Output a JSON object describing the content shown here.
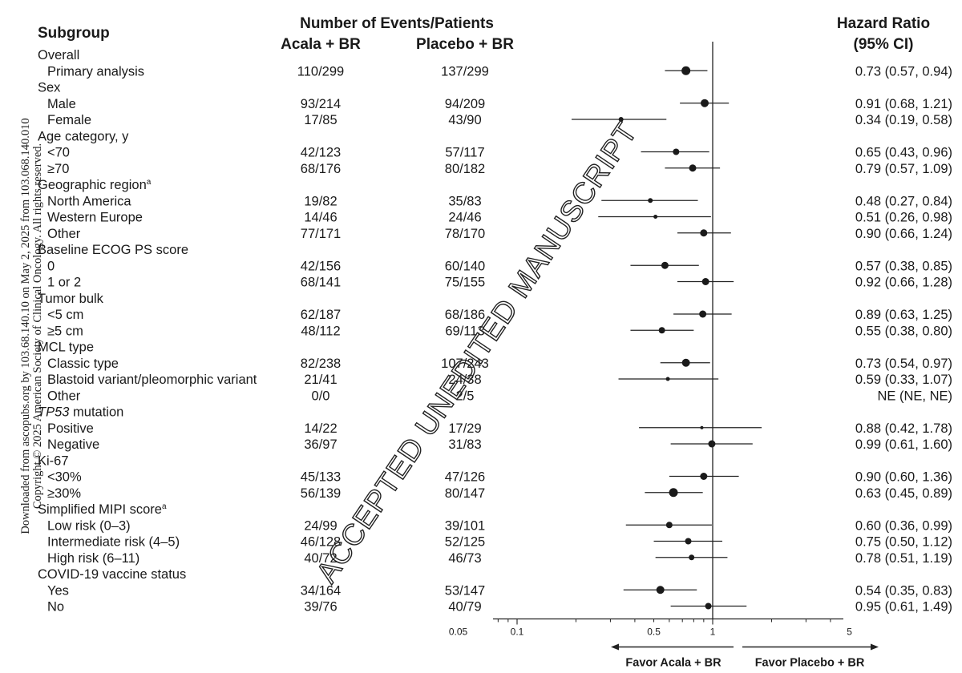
{
  "header": {
    "subgroup": "Subgroup",
    "events_title": "Number of Events/Patients",
    "arm1": "Acala + BR",
    "arm2": "Placebo + BR",
    "hr_title": "Hazard Ratio",
    "ci_title": "(95% CI)"
  },
  "side_credit": {
    "line1": "Downloaded from ascopubs.org by 103.68.140.10 on May 2, 2025 from 103.068.140.010",
    "line2": "Copyright © 2025 American Society of Clinical Oncology. All rights reserved."
  },
  "watermark": "ACCEPTED UNEDITED MANUSCRIPT",
  "chart_data": {
    "type": "forest",
    "x_scale": "log",
    "reference_line": 1,
    "xlim": [
      0.02,
      10
    ],
    "x_ticks": [
      0.05,
      0.1,
      0.5,
      1,
      5
    ],
    "x_tick_labels": [
      "0.05",
      "0.1",
      "0.5",
      "1",
      "5"
    ],
    "favor_left": "Favor Acala + BR",
    "favor_right": "Favor Placebo + BR",
    "rows": [
      {
        "label": "Overall",
        "header": true
      },
      {
        "label": "Primary analysis",
        "a": "110/299",
        "b": "137/299",
        "hr": 0.73,
        "lo": 0.57,
        "hi": 0.94,
        "ci_text": "0.73 (0.57, 0.94)",
        "w": 5.5
      },
      {
        "label": "Sex",
        "header": true
      },
      {
        "label": "Male",
        "a": "93/214",
        "b": "94/209",
        "hr": 0.91,
        "lo": 0.68,
        "hi": 1.21,
        "ci_text": "0.91 (0.68, 1.21)",
        "w": 5
      },
      {
        "label": "Female",
        "a": "17/85",
        "b": "43/90",
        "hr": 0.34,
        "lo": 0.19,
        "hi": 0.58,
        "ci_text": "0.34 (0.19, 0.58)",
        "w": 3
      },
      {
        "label": "Age category, y",
        "header": true
      },
      {
        "label": "<70",
        "a": "42/123",
        "b": "57/117",
        "hr": 0.65,
        "lo": 0.43,
        "hi": 0.96,
        "ci_text": "0.65 (0.43, 0.96)",
        "w": 4
      },
      {
        "label": "≥70",
        "a": "68/176",
        "b": "80/182",
        "hr": 0.79,
        "lo": 0.57,
        "hi": 1.09,
        "ci_text": "0.79 (0.57, 1.09)",
        "w": 4.5
      },
      {
        "label": "Geographic region",
        "sup": "a",
        "header": true
      },
      {
        "label": "North America",
        "a": "19/82",
        "b": "35/83",
        "hr": 0.48,
        "lo": 0.27,
        "hi": 0.84,
        "ci_text": "0.48 (0.27, 0.84)",
        "w": 3
      },
      {
        "label": "Western Europe",
        "a": "14/46",
        "b": "24/46",
        "hr": 0.51,
        "lo": 0.26,
        "hi": 0.98,
        "ci_text": "0.51 (0.26, 0.98)",
        "w": 2.5
      },
      {
        "label": "Other",
        "a": "77/171",
        "b": "78/170",
        "hr": 0.9,
        "lo": 0.66,
        "hi": 1.24,
        "ci_text": "0.90 (0.66, 1.24)",
        "w": 4.5
      },
      {
        "label": "Baseline ECOG PS score",
        "header": true
      },
      {
        "label": "0",
        "a": "42/156",
        "b": "60/140",
        "hr": 0.57,
        "lo": 0.38,
        "hi": 0.85,
        "ci_text": "0.57 (0.38, 0.85)",
        "w": 4.5
      },
      {
        "label": "1 or 2",
        "a": "68/141",
        "b": "75/155",
        "hr": 0.92,
        "lo": 0.66,
        "hi": 1.28,
        "ci_text": "0.92 (0.66, 1.28)",
        "w": 4.5
      },
      {
        "label": "Tumor bulk",
        "header": true
      },
      {
        "label": "<5 cm",
        "a": "62/187",
        "b": "68/186",
        "hr": 0.89,
        "lo": 0.63,
        "hi": 1.25,
        "ci_text": "0.89 (0.63, 1.25)",
        "w": 4.5
      },
      {
        "label": "≥5 cm",
        "a": "48/112",
        "b": "69/113",
        "hr": 0.55,
        "lo": 0.38,
        "hi": 0.8,
        "ci_text": "0.55 (0.38, 0.80)",
        "w": 4
      },
      {
        "label": "MCL type",
        "header": true
      },
      {
        "label": "Classic type",
        "a": "82/238",
        "b": "107/243",
        "hr": 0.73,
        "lo": 0.54,
        "hi": 0.97,
        "ci_text": "0.73 (0.54, 0.97)",
        "w": 5
      },
      {
        "label": "Blastoid variant/pleomorphic variant",
        "a": "21/41",
        "b": "24/38",
        "hr": 0.59,
        "lo": 0.33,
        "hi": 1.07,
        "ci_text": "0.59 (0.33, 1.07)",
        "w": 2.5
      },
      {
        "label": "Other",
        "a": "0/0",
        "b": "2/5",
        "ci_text": "NE (NE, NE)"
      },
      {
        "label": "TP53",
        "label_suffix": " mutation",
        "italic": true,
        "header": true
      },
      {
        "label": "Positive",
        "a": "14/22",
        "b": "17/29",
        "hr": 0.88,
        "lo": 0.42,
        "hi": 1.78,
        "ci_text": "0.88 (0.42, 1.78)",
        "w": 2
      },
      {
        "label": "Negative",
        "a": "36/97",
        "b": "31/83",
        "hr": 0.99,
        "lo": 0.61,
        "hi": 1.6,
        "ci_text": "0.99 (0.61, 1.60)",
        "w": 4.5
      },
      {
        "label": "Ki-67",
        "header": true
      },
      {
        "label": "<30%",
        "a": "45/133",
        "b": "47/126",
        "hr": 0.9,
        "lo": 0.6,
        "hi": 1.36,
        "ci_text": "0.90 (0.60, 1.36)",
        "w": 4.5
      },
      {
        "label": "≥30%",
        "a": "56/139",
        "b": "80/147",
        "hr": 0.63,
        "lo": 0.45,
        "hi": 0.89,
        "ci_text": "0.63 (0.45, 0.89)",
        "w": 5.5
      },
      {
        "label": "Simplified MIPI score",
        "sup": "a",
        "header": true
      },
      {
        "label": "Low risk (0–3)",
        "a": "24/99",
        "b": "39/101",
        "hr": 0.6,
        "lo": 0.36,
        "hi": 0.99,
        "ci_text": "0.60 (0.36, 0.99)",
        "w": 4
      },
      {
        "label": "Intermediate risk (4–5)",
        "a": "46/128",
        "b": "52/125",
        "hr": 0.75,
        "lo": 0.5,
        "hi": 1.12,
        "ci_text": "0.75 (0.50, 1.12)",
        "w": 4
      },
      {
        "label": "High risk (6–11)",
        "a": "40/72",
        "b": "46/73",
        "hr": 0.78,
        "lo": 0.51,
        "hi": 1.19,
        "ci_text": "0.78 (0.51, 1.19)",
        "w": 3.5
      },
      {
        "label": "COVID-19 vaccine status",
        "header": true
      },
      {
        "label": "Yes",
        "a": "34/164",
        "b": "53/147",
        "hr": 0.54,
        "lo": 0.35,
        "hi": 0.83,
        "ci_text": "0.54 (0.35, 0.83)",
        "w": 5
      },
      {
        "label": "No",
        "a": "39/76",
        "b": "40/79",
        "hr": 0.95,
        "lo": 0.61,
        "hi": 1.49,
        "ci_text": "0.95 (0.61, 1.49)",
        "w": 4
      }
    ]
  }
}
